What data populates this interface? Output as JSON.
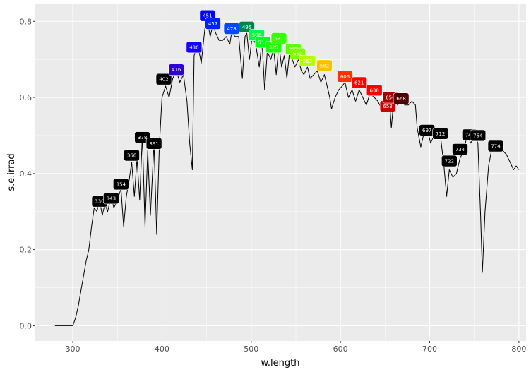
{
  "chart_data": {
    "type": "line",
    "xlabel": "w.length",
    "ylabel": "s.e.irrad",
    "xlim": [
      258,
      808
    ],
    "ylim": [
      -0.04,
      0.845
    ],
    "x_ticks": [
      300,
      400,
      500,
      600,
      700,
      800
    ],
    "x_tick_labels": [
      "300",
      "400",
      "500",
      "600",
      "700",
      "800"
    ],
    "y_ticks": [
      0.0,
      0.2,
      0.4,
      0.6,
      0.8
    ],
    "y_tick_labels": [
      "0.0",
      "0.2",
      "0.4",
      "0.6",
      "0.8"
    ],
    "grid": true,
    "line_color": "#000000",
    "background": "#ebebeb",
    "series": [
      {
        "x": [
          280,
          290,
          300,
          303,
          306,
          309,
          312,
          315,
          318,
          321,
          324,
          327,
          330,
          333,
          336,
          339,
          343,
          346,
          350,
          354,
          357,
          360,
          363,
          366,
          369,
          372,
          375,
          378,
          381,
          384,
          387,
          391,
          394,
          397,
          400,
          404,
          408,
          412,
          416,
          420,
          424,
          428,
          431,
          434,
          436,
          440,
          444,
          448,
          451,
          454,
          457,
          460,
          464,
          468,
          472,
          476,
          478,
          482,
          486,
          490,
          493,
          495,
          498,
          501,
          505,
          509,
          512,
          515,
          518,
          522,
          525,
          528,
          531,
          534,
          537,
          540,
          543,
          546,
          549,
          553,
          556,
          559,
          563,
          566,
          570,
          574,
          578,
          582,
          586,
          588,
          590,
          594,
          598,
          602,
          605,
          609,
          613,
          617,
          621,
          625,
          629,
          633,
          638,
          642,
          646,
          650,
          653,
          655,
          657,
          660,
          664,
          668,
          672,
          676,
          680,
          684,
          686,
          690,
          694,
          697,
          701,
          705,
          709,
          712,
          716,
          719,
          722,
          726,
          730,
          734,
          738,
          742,
          746,
          750,
          754,
          757,
          759,
          762,
          766,
          770,
          774,
          778,
          782,
          786,
          790,
          794,
          797,
          800
        ],
        "y": [
          0.0,
          0.0,
          0.0,
          0.02,
          0.05,
          0.09,
          0.13,
          0.17,
          0.2,
          0.26,
          0.31,
          0.3,
          0.33,
          0.29,
          0.32,
          0.3,
          0.34,
          0.31,
          0.33,
          0.36,
          0.26,
          0.34,
          0.38,
          0.43,
          0.34,
          0.44,
          0.33,
          0.5,
          0.26,
          0.46,
          0.29,
          0.48,
          0.24,
          0.47,
          0.6,
          0.63,
          0.6,
          0.65,
          0.67,
          0.64,
          0.66,
          0.59,
          0.48,
          0.41,
          0.71,
          0.74,
          0.69,
          0.78,
          0.8,
          0.76,
          0.79,
          0.77,
          0.75,
          0.75,
          0.76,
          0.74,
          0.77,
          0.76,
          0.76,
          0.65,
          0.76,
          0.77,
          0.7,
          0.76,
          0.74,
          0.68,
          0.75,
          0.62,
          0.72,
          0.7,
          0.73,
          0.66,
          0.74,
          0.68,
          0.71,
          0.65,
          0.72,
          0.7,
          0.68,
          0.7,
          0.67,
          0.66,
          0.68,
          0.65,
          0.66,
          0.67,
          0.64,
          0.66,
          0.62,
          0.6,
          0.57,
          0.6,
          0.62,
          0.63,
          0.64,
          0.6,
          0.62,
          0.59,
          0.62,
          0.6,
          0.58,
          0.61,
          0.6,
          0.59,
          0.57,
          0.57,
          0.58,
          0.59,
          0.52,
          0.6,
          0.58,
          0.6,
          0.58,
          0.58,
          0.59,
          0.58,
          0.52,
          0.47,
          0.51,
          0.52,
          0.48,
          0.5,
          0.5,
          0.5,
          0.42,
          0.34,
          0.41,
          0.39,
          0.4,
          0.44,
          0.46,
          0.5,
          0.48,
          0.5,
          0.48,
          0.29,
          0.14,
          0.3,
          0.42,
          0.47,
          0.47,
          0.47,
          0.46,
          0.45,
          0.43,
          0.41,
          0.42,
          0.41
        ]
      }
    ],
    "annotations": [
      {
        "label": "330",
        "x": 330,
        "y": 0.327,
        "color": "#000000"
      },
      {
        "label": "343",
        "x": 343,
        "y": 0.335,
        "color": "#000000"
      },
      {
        "label": "354",
        "x": 354,
        "y": 0.372,
        "color": "#000000"
      },
      {
        "label": "366",
        "x": 366,
        "y": 0.448,
        "color": "#000000"
      },
      {
        "label": "378",
        "x": 378,
        "y": 0.495,
        "color": "#000000"
      },
      {
        "label": "391",
        "x": 391,
        "y": 0.479,
        "color": "#000000"
      },
      {
        "label": "402",
        "x": 402,
        "y": 0.648,
        "color": "#000000"
      },
      {
        "label": "416",
        "x": 416,
        "y": 0.673,
        "color": "#2a00d6"
      },
      {
        "label": "436",
        "x": 436,
        "y": 0.732,
        "color": "#1500ff"
      },
      {
        "label": "451",
        "x": 451,
        "y": 0.815,
        "color": "#0000ff"
      },
      {
        "label": "457",
        "x": 457,
        "y": 0.794,
        "color": "#0022ff"
      },
      {
        "label": "478",
        "x": 478,
        "y": 0.781,
        "color": "#0049ff"
      },
      {
        "label": "495",
        "x": 495,
        "y": 0.785,
        "color": "#00854a"
      },
      {
        "label": "506",
        "x": 506,
        "y": 0.764,
        "color": "#00ff36"
      },
      {
        "label": "513",
        "x": 513,
        "y": 0.745,
        "color": "#00ff19"
      },
      {
        "label": "525",
        "x": 525,
        "y": 0.732,
        "color": "#1fff00"
      },
      {
        "label": "531",
        "x": 531,
        "y": 0.755,
        "color": "#3bff00"
      },
      {
        "label": "547",
        "x": 547,
        "y": 0.727,
        "color": "#5dff00"
      },
      {
        "label": "552",
        "x": 552,
        "y": 0.715,
        "color": "#7dff00"
      },
      {
        "label": "563",
        "x": 563,
        "y": 0.696,
        "color": "#b3ff00"
      },
      {
        "label": "582",
        "x": 582,
        "y": 0.684,
        "color": "#ffbf00"
      },
      {
        "label": "605",
        "x": 605,
        "y": 0.655,
        "color": "#ff3300"
      },
      {
        "label": "621",
        "x": 621,
        "y": 0.639,
        "color": "#ff0000"
      },
      {
        "label": "638",
        "x": 638,
        "y": 0.619,
        "color": "#ff0000"
      },
      {
        "label": "653",
        "x": 653,
        "y": 0.577,
        "color": "#cc0000"
      },
      {
        "label": "656",
        "x": 656,
        "y": 0.6,
        "color": "#aa0000"
      },
      {
        "label": "668",
        "x": 668,
        "y": 0.597,
        "color": "#4d0000"
      },
      {
        "label": "697",
        "x": 697,
        "y": 0.514,
        "color": "#000000"
      },
      {
        "label": "712",
        "x": 712,
        "y": 0.505,
        "color": "#000000"
      },
      {
        "label": "722",
        "x": 722,
        "y": 0.433,
        "color": "#000000"
      },
      {
        "label": "734",
        "x": 734,
        "y": 0.464,
        "color": "#000000"
      },
      {
        "label": "745",
        "x": 745,
        "y": 0.502,
        "color": "#000000"
      },
      {
        "label": "754",
        "x": 754,
        "y": 0.5,
        "color": "#000000"
      },
      {
        "label": "774",
        "x": 774,
        "y": 0.472,
        "color": "#000000"
      }
    ]
  }
}
